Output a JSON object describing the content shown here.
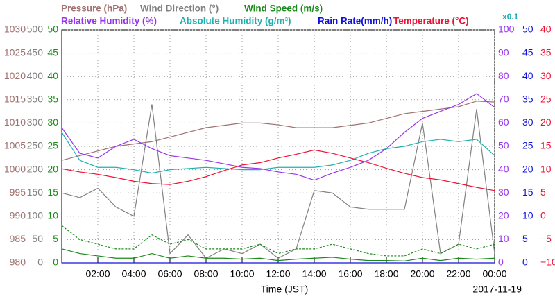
{
  "chart_data": {
    "type": "line",
    "x_label": "Time (JST)",
    "date": "2017-11-19",
    "annotation": "x0.1",
    "xlim": [
      0,
      24
    ],
    "xticks": [
      {
        "value": 2,
        "label": "02:00"
      },
      {
        "value": 4,
        "label": "04:00"
      },
      {
        "value": 6,
        "label": "06:00"
      },
      {
        "value": 8,
        "label": "08:00"
      },
      {
        "value": 10,
        "label": "10:00"
      },
      {
        "value": 12,
        "label": "12:00"
      },
      {
        "value": 14,
        "label": "14:00"
      },
      {
        "value": 16,
        "label": "16:00"
      },
      {
        "value": 18,
        "label": "18:00"
      },
      {
        "value": 20,
        "label": "20:00"
      },
      {
        "value": 22,
        "label": "22:00"
      },
      {
        "value": 24,
        "label": "00:00"
      }
    ],
    "grid": true,
    "axes": [
      {
        "color": "#a07070",
        "lim": [
          980,
          1030
        ],
        "ticks": [
          980,
          985,
          990,
          995,
          1000,
          1005,
          1010,
          1015,
          1020,
          1025,
          1030
        ]
      },
      {
        "color": "#808080",
        "lim": [
          0,
          500
        ],
        "ticks": [
          0,
          50,
          100,
          150,
          200,
          250,
          300,
          350,
          400,
          450,
          500
        ]
      },
      {
        "color": "#1a8a1a",
        "lim": [
          0,
          50
        ],
        "ticks": [
          0,
          5,
          10,
          15,
          20,
          25,
          30,
          35,
          40,
          45,
          50
        ]
      },
      {
        "color": "#9933ee",
        "lim": [
          0,
          100
        ],
        "ticks": [
          0,
          10,
          20,
          30,
          40,
          50,
          60,
          70,
          80,
          90,
          100
        ]
      },
      {
        "color": "#1111dd",
        "lim": [
          0,
          50
        ],
        "ticks": [
          0,
          5,
          10,
          15,
          20,
          25,
          30,
          35,
          40,
          45,
          50
        ]
      },
      {
        "color": "#ee1133",
        "lim": [
          -10,
          40
        ],
        "ticks": [
          {
            "value": -10,
            "label": "−10"
          },
          {
            "value": -5,
            "label": "−5"
          },
          0,
          5,
          10,
          15,
          20,
          25,
          30,
          35,
          40
        ]
      }
    ],
    "x": [
      0,
      1,
      2,
      3,
      4,
      5,
      6,
      7,
      8,
      9,
      10,
      11,
      12,
      13,
      14,
      15,
      16,
      17,
      18,
      19,
      20,
      21,
      22,
      23,
      24
    ],
    "series": [
      {
        "name": "Pressure (hPa)",
        "color": "#a07070",
        "axis": 0,
        "values": [
          1002,
          1003,
          1004,
          1005,
          1005.5,
          1006,
          1007,
          1008,
          1009,
          1009.5,
          1010,
          1010,
          1009.6,
          1009,
          1009,
          1009,
          1009.5,
          1010,
          1011,
          1012,
          1012.5,
          1013,
          1013.5,
          1014.7,
          1014.5
        ]
      },
      {
        "name": "Wind Direction (°)",
        "color": "#808080",
        "axis": 1,
        "values": [
          150,
          140,
          160,
          120,
          100,
          340,
          20,
          60,
          10,
          30,
          20,
          40,
          10,
          30,
          155,
          150,
          120,
          115,
          115,
          115,
          300,
          20,
          40,
          330,
          20
        ]
      },
      {
        "name": "Wind Speed (m/s)",
        "color": "#1a8a1a",
        "axis": 2,
        "values": [
          3,
          2,
          1.5,
          1,
          1,
          2,
          1,
          1.5,
          1,
          1,
          0.8,
          1,
          0.5,
          0.8,
          1,
          1.2,
          0.8,
          0.5,
          0.5,
          0.4,
          1,
          0.5,
          1,
          0.8,
          1
        ],
        "gusts": [
          8,
          5,
          4,
          3,
          3,
          6,
          4,
          5,
          3,
          3,
          3,
          4,
          2,
          3,
          3,
          4,
          3,
          2,
          1.5,
          1.5,
          3,
          2,
          4,
          3,
          4
        ]
      },
      {
        "name": "Relative Humidity (%)",
        "color": "#9933ee",
        "axis": 3,
        "values": [
          58,
          47,
          45,
          50,
          53,
          49,
          46,
          45,
          44,
          42.5,
          41,
          40.5,
          39,
          38,
          35.5,
          38.5,
          41,
          44,
          49,
          56,
          62,
          65,
          68,
          72.6,
          66.7
        ]
      },
      {
        "name": "Absolute Humidity (g/m³)",
        "color": "#20b0b0",
        "axis": 3,
        "values": [
          56,
          44,
          41,
          41,
          40,
          38.5,
          40,
          40.5,
          41,
          40.5,
          40,
          40,
          41,
          41,
          41,
          42,
          44,
          47,
          49,
          50,
          52,
          53,
          52,
          53,
          46
        ]
      },
      {
        "name": "Rain Rate(mm/h)",
        "color": "#1111dd",
        "axis": 4,
        "values": [
          0,
          0,
          0,
          0,
          0,
          0,
          0,
          0,
          0,
          0,
          0,
          0,
          0,
          0,
          0,
          0,
          0,
          0,
          0,
          0,
          0,
          0,
          0,
          0,
          0
        ]
      },
      {
        "name": "Temperature (°C)",
        "color": "#ee1133",
        "axis": 5,
        "values": [
          10.2,
          9.5,
          9,
          8.3,
          7.5,
          7,
          6.8,
          7.5,
          8.5,
          9.8,
          11,
          11.5,
          12.5,
          13.3,
          14.2,
          13.5,
          12.5,
          11.5,
          10.3,
          9.2,
          8.3,
          7.8,
          7,
          6.2,
          5.5
        ]
      }
    ]
  }
}
